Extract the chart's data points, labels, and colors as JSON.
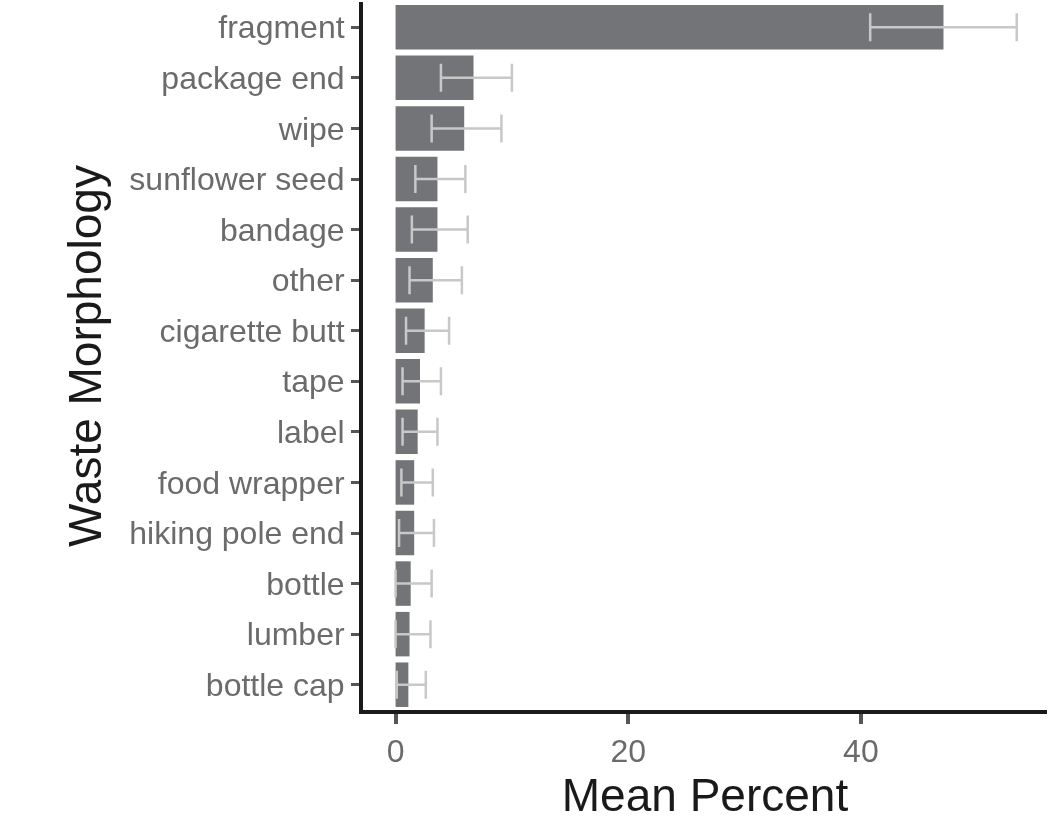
{
  "chart_data": {
    "type": "bar",
    "orientation": "horizontal",
    "xlabel": "Mean Percent",
    "ylabel": "Waste Morphology",
    "categories": [
      "fragment",
      "package end",
      "wipe",
      "sunflower seed",
      "bandage",
      "other",
      "cigarette butt",
      "tape",
      "label",
      "food wrapper",
      "hiking pole end",
      "bottle",
      "lumber",
      "bottle cap"
    ],
    "values": [
      47.1,
      6.7,
      5.9,
      3.6,
      3.6,
      3.2,
      2.5,
      2.1,
      1.9,
      1.6,
      1.6,
      1.3,
      1.2,
      1.1
    ],
    "errors": [
      [
        40.8,
        53.4
      ],
      [
        3.9,
        10.0
      ],
      [
        3.1,
        9.1
      ],
      [
        1.7,
        6.0
      ],
      [
        1.4,
        6.2
      ],
      [
        1.2,
        5.7
      ],
      [
        0.9,
        4.6
      ],
      [
        0.6,
        3.9
      ],
      [
        0.6,
        3.6
      ],
      [
        0.5,
        3.2
      ],
      [
        0.3,
        3.3
      ],
      [
        0.0,
        3.1
      ],
      [
        0.0,
        3.0
      ],
      [
        0.1,
        2.6
      ]
    ],
    "color": "#737477",
    "xlim": [
      -2.8,
      56.0
    ],
    "xticks": [
      0,
      20,
      40
    ]
  }
}
